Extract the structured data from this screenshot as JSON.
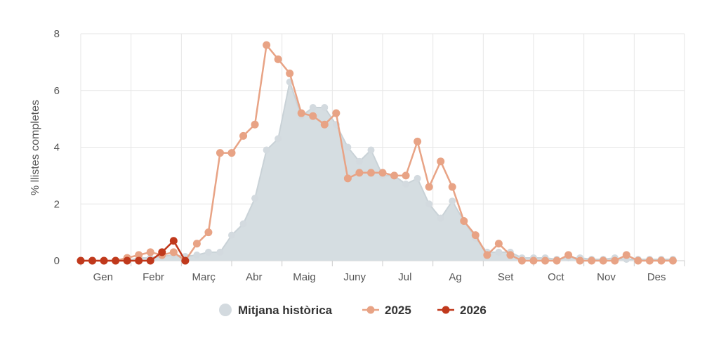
{
  "chart_data": {
    "type": "line",
    "ylabel": "% llistes completes",
    "xlabel": "",
    "ylim": [
      0,
      8
    ],
    "yticks": [
      0,
      2,
      4,
      6,
      8
    ],
    "months": [
      "Gen",
      "Febr",
      "Març",
      "Abr",
      "Maig",
      "Juny",
      "Jul",
      "Ag",
      "Set",
      "Oct",
      "Nov",
      "Des"
    ],
    "x_range_weeks": [
      0,
      52
    ],
    "grid": true,
    "legend_position": "bottom",
    "series": [
      {
        "name": "Mitjana històrica",
        "kind": "area",
        "color": "#d5dde1",
        "values": [
          0,
          0,
          0,
          0,
          0,
          0.1,
          0.1,
          0.15,
          0.2,
          0.15,
          0.2,
          0.3,
          0.3,
          0.9,
          1.3,
          2.2,
          3.9,
          4.3,
          6.3,
          5.1,
          5.4,
          5.4,
          4.8,
          4.0,
          3.5,
          3.9,
          3.0,
          3.0,
          2.7,
          2.9,
          2.0,
          1.5,
          2.1,
          1.4,
          0.8,
          0.3,
          0.3,
          0.3,
          0.1,
          0.1,
          0.1,
          0.05,
          0.1,
          0.1,
          0.05,
          0.05,
          0.1,
          0.05,
          0.05,
          0.05,
          0.05,
          0.05
        ]
      },
      {
        "name": "2025",
        "kind": "line",
        "color": "#e8a385",
        "values": [
          0,
          0,
          0,
          0,
          0.1,
          0.2,
          0.3,
          0.2,
          0.3,
          0,
          0.6,
          1.0,
          3.8,
          3.8,
          4.4,
          4.8,
          7.6,
          7.1,
          6.6,
          5.2,
          5.1,
          4.8,
          5.2,
          2.9,
          3.1,
          3.1,
          3.1,
          3.0,
          3.0,
          4.2,
          2.6,
          3.5,
          2.6,
          1.4,
          0.9,
          0.2,
          0.6,
          0.2,
          0,
          0,
          0,
          0,
          0.2,
          0,
          0,
          0,
          0,
          0.2,
          0,
          0,
          0,
          0
        ]
      },
      {
        "name": "2026",
        "kind": "line",
        "color": "#c0391c",
        "values": [
          0,
          0,
          0,
          0,
          0,
          0,
          0,
          0.3,
          0.7,
          0
        ]
      }
    ]
  }
}
